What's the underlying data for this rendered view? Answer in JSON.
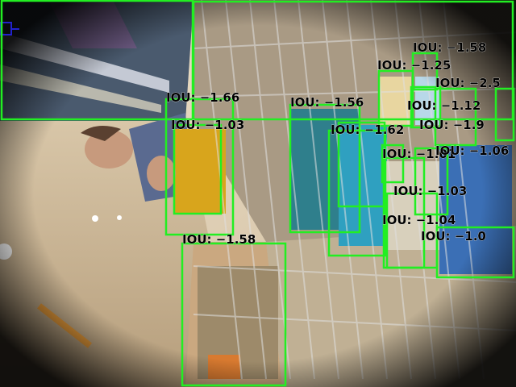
{
  "scene": {
    "description_colors": {
      "box_color": "#22ee22",
      "tracker_color": "#2222cc",
      "label_color": "#000000"
    }
  },
  "detections": [
    {
      "label": "IOU: −1.58"
    },
    {
      "label": "IOU: −1.25"
    },
    {
      "label": "IOU: −2.5"
    },
    {
      "label": "IOU: −1.12"
    },
    {
      "label": "IOU: −1.56"
    },
    {
      "label": "IOU: −1.66"
    },
    {
      "label": "IOU: −1.03"
    },
    {
      "label": "IOU: −1.62"
    },
    {
      "label": "IOU: −1.9"
    },
    {
      "label": "IOU: −1.01"
    },
    {
      "label": "IOU: −1.06"
    },
    {
      "label": "IOU: −1.03"
    },
    {
      "label": "IOU: −1.04"
    },
    {
      "label": "IOU: −1.0"
    },
    {
      "label": "IOU: −1.58"
    }
  ]
}
